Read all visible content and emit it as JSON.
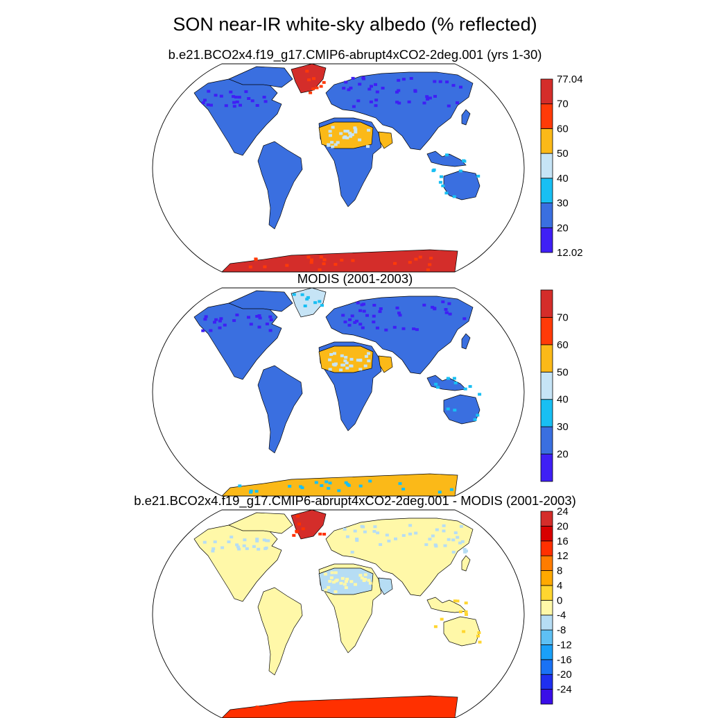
{
  "title": "SON near-IR white-sky albedo (% reflected)",
  "panels": [
    {
      "title": "b.e21.BCO2x4.f19_g17.CMIP6-abrupt4xCO2-2deg.001 (yrs 1-30)",
      "colorbar": {
        "colors": [
          "#3f1ff5",
          "#3a6fe0",
          "#18bff3",
          "#c6e4f6",
          "#fbb918",
          "#ff3a08",
          "#d42d2a"
        ],
        "labels": [
          "12.02",
          "20",
          "30",
          "40",
          "50",
          "60",
          "70",
          "77.04"
        ]
      },
      "fills": {
        "land": "#3a6fe0",
        "desert": "#fbb918",
        "desert_spots": "#c6e4f6",
        "greenland": "#d42d2a",
        "greenland_edge": "#ff3a08",
        "antarctica": "#d42d2a",
        "boreal": "#3f1ff5",
        "tropical_spots": "#18bff3"
      }
    },
    {
      "title": "MODIS (2001-2003)",
      "colorbar": {
        "colors": [
          "#3f1ff5",
          "#3a6fe0",
          "#18bff3",
          "#c6e4f6",
          "#fbb918",
          "#ff3a08",
          "#d42d2a"
        ],
        "labels": [
          "20",
          "30",
          "40",
          "50",
          "60",
          "70"
        ]
      },
      "fills": {
        "land": "#3a6fe0",
        "desert": "#fbb918",
        "desert_spots": "#c6e4f6",
        "greenland": "#c6e4f6",
        "greenland_edge": "#18bff3",
        "antarctica": "#fbb918",
        "boreal": "#3f1ff5",
        "tropical_spots": "#18bff3"
      }
    },
    {
      "title": "b.e21.BCO2x4.f19_g17.CMIP6-abrupt4xCO2-2deg.001 - MODIS (2001-2003)",
      "colorbar": {
        "colors": [
          "#3a0ee8",
          "#1f2ff0",
          "#1a72f5",
          "#1aa0f8",
          "#5ec0f4",
          "#b6ddf4",
          "#fff8a8",
          "#ffd630",
          "#ffa900",
          "#ff7c00",
          "#ff3000",
          "#d80000",
          "#d42d2a"
        ],
        "labels": [
          "-24",
          "-20",
          "-16",
          "-12",
          "-8",
          "-4",
          "0",
          "4",
          "8",
          "12",
          "16",
          "20",
          "24"
        ]
      },
      "fills": {
        "land": "#fff8a8",
        "desert": "#b6ddf4",
        "desert_spots": "#fff8a8",
        "greenland": "#d42d2a",
        "greenland_edge": "#ff3000",
        "antarctica": "#ff3000",
        "boreal": "#b6ddf4",
        "tropical_spots": "#ffd630"
      }
    }
  ]
}
